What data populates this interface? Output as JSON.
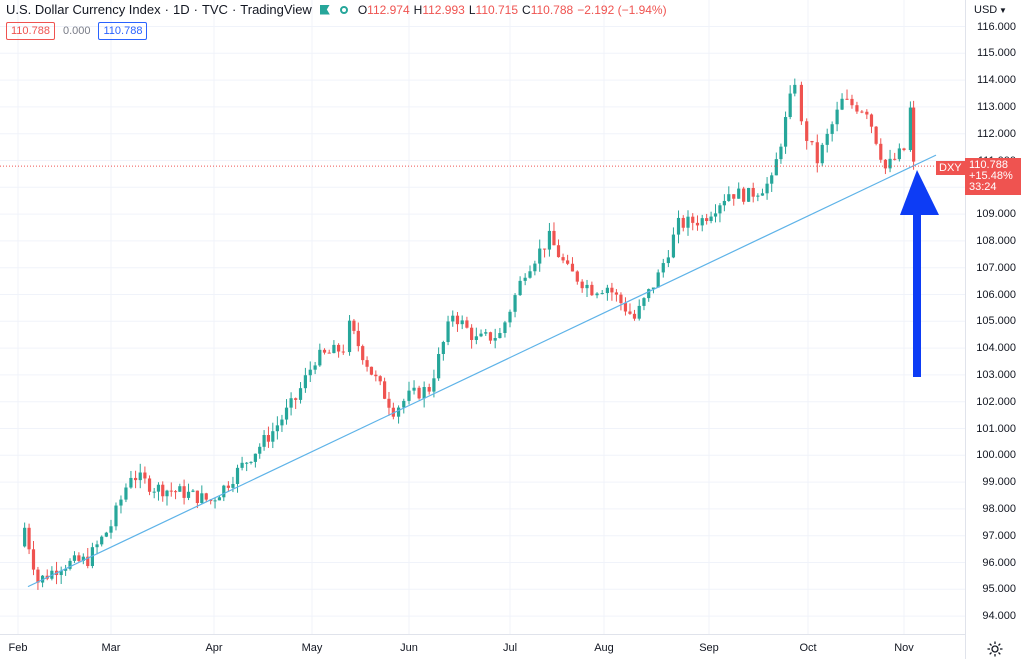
{
  "legend": {
    "title": "U.S. Dollar Currency Index",
    "interval": "1D",
    "exchange": "TVC",
    "source": "TradingView",
    "o_label": "O",
    "o": "112.974",
    "h_label": "H",
    "h": "112.993",
    "l_label": "L",
    "l": "110.715",
    "c_label": "C",
    "c": "110.788",
    "change": "−2.192 (−1.94%)"
  },
  "value_row": {
    "price": "110.788",
    "zero": "0.000",
    "price_blue": "110.788"
  },
  "price_axis": {
    "currency": "USD",
    "ticks": [
      "116.000",
      "115.000",
      "114.000",
      "113.000",
      "112.000",
      "111.000",
      "110.000",
      "109.000",
      "108.000",
      "107.000",
      "106.000",
      "105.000",
      "104.000",
      "103.000",
      "102.000",
      "101.000",
      "100.000",
      "99.000",
      "98.000",
      "97.000",
      "96.000",
      "95.000",
      "94.000"
    ]
  },
  "time_axis": {
    "ticks": [
      "Feb",
      "Mar",
      "Apr",
      "May",
      "Jun",
      "Jul",
      "Aug",
      "Sep",
      "Oct",
      "Nov"
    ]
  },
  "price_tag": {
    "symbol": "DXY",
    "price": "110.788",
    "change_pct": "+15.48%",
    "countdown": "33:24"
  },
  "colors": {
    "up": "#26a69a",
    "down": "#ef5350",
    "trendline": "#5eb3e8",
    "arrow": "#0d3cf5"
  },
  "chart_data": {
    "type": "candlestick",
    "title": "U.S. Dollar Currency Index",
    "ylabel": "USD",
    "ylim": [
      93.5,
      116.5
    ],
    "x_labels": [
      "Feb",
      "Mar",
      "Apr",
      "May",
      "Jun",
      "Jul",
      "Aug",
      "Sep",
      "Oct",
      "Nov"
    ],
    "approx_close_path": [
      {
        "x": "Feb 1",
        "close": 96.6
      },
      {
        "x": "Feb 3",
        "close": 97.3
      },
      {
        "x": "Feb 7",
        "close": 95.3
      },
      {
        "x": "Feb 14",
        "close": 95.9
      },
      {
        "x": "Feb 22",
        "close": 96.1
      },
      {
        "x": "Mar 1",
        "close": 97.4
      },
      {
        "x": "Mar 7",
        "close": 99.3
      },
      {
        "x": "Mar 14",
        "close": 98.8
      },
      {
        "x": "Mar 23",
        "close": 98.6
      },
      {
        "x": "Mar 31",
        "close": 98.3
      },
      {
        "x": "Apr 4",
        "close": 98.8
      },
      {
        "x": "Apr 11",
        "close": 99.8
      },
      {
        "x": "Apr 19",
        "close": 100.9
      },
      {
        "x": "Apr 26",
        "close": 102.1
      },
      {
        "x": "May 2",
        "close": 103.6
      },
      {
        "x": "May 11",
        "close": 104.0
      },
      {
        "x": "May 13",
        "close": 104.8
      },
      {
        "x": "May 20",
        "close": 103.1
      },
      {
        "x": "May 27",
        "close": 101.7
      },
      {
        "x": "Jun 1",
        "close": 102.2
      },
      {
        "x": "Jun 7",
        "close": 102.5
      },
      {
        "x": "Jun 14",
        "close": 105.3
      },
      {
        "x": "Jun 21",
        "close": 104.3
      },
      {
        "x": "Jun 28",
        "close": 104.5
      },
      {
        "x": "Jul 6",
        "close": 106.9
      },
      {
        "x": "Jul 14",
        "close": 108.1
      },
      {
        "x": "Jul 20",
        "close": 106.9
      },
      {
        "x": "Jul 28",
        "close": 106.2
      },
      {
        "x": "Aug 2",
        "close": 106.3
      },
      {
        "x": "Aug 10",
        "close": 105.1
      },
      {
        "x": "Aug 17",
        "close": 106.7
      },
      {
        "x": "Aug 23",
        "close": 108.6
      },
      {
        "x": "Aug 30",
        "close": 108.8
      },
      {
        "x": "Sep 7",
        "close": 109.8
      },
      {
        "x": "Sep 13",
        "close": 109.7
      },
      {
        "x": "Sep 20",
        "close": 110.2
      },
      {
        "x": "Sep 27",
        "close": 114.0
      },
      {
        "x": "Sep 29",
        "close": 112.3
      },
      {
        "x": "Oct 4",
        "close": 111.0
      },
      {
        "x": "Oct 12",
        "close": 113.2
      },
      {
        "x": "Oct 20",
        "close": 112.9
      },
      {
        "x": "Oct 26",
        "close": 110.7
      },
      {
        "x": "Nov 1",
        "close": 111.4
      },
      {
        "x": "Nov 3",
        "close": 112.9
      },
      {
        "x": "Nov 4",
        "close": 110.8
      }
    ],
    "trendline": {
      "from": {
        "x": "Feb 4",
        "y": 95.1
      },
      "to": {
        "x": "Nov 11",
        "y": 111.2
      }
    },
    "last_price": 110.788
  }
}
